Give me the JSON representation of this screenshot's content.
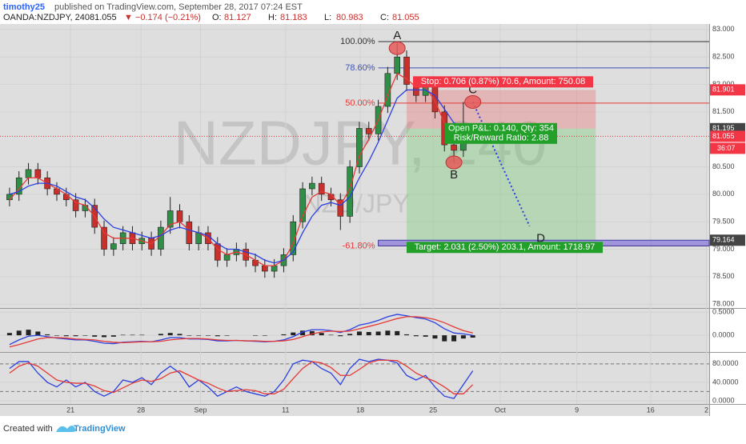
{
  "header": {
    "author": "timothy25",
    "published": "published on TradingView.com, September 28, 2017 07:24 EST",
    "symbol": "OANDA:NZDJPY, 240",
    "last": 81.055,
    "change": "▼ −0.174 (−0.21%)",
    "ohlc": [
      {
        "label": "O:",
        "value": 81.127
      },
      {
        "label": "H:",
        "value": 81.183
      },
      {
        "label": "L:",
        "value": 80.983
      },
      {
        "label": "C:",
        "value": 81.055
      }
    ]
  },
  "chart_data": [
    {
      "type": "candlestick",
      "watermark": "NZDJPY, 240",
      "watermark_sub": "NZD/JPY",
      "xlim": [
        -0.5,
        74
      ],
      "xticks": [
        {
          "value": 6.45,
          "label": "21"
        },
        {
          "value": 13.9,
          "label": "28"
        },
        {
          "value": 20.2,
          "label": "Sep"
        },
        {
          "value": 29.2,
          "label": "11"
        },
        {
          "value": 37.1,
          "label": "18"
        },
        {
          "value": 44.8,
          "label": "25"
        },
        {
          "value": 51.9,
          "label": "Oct"
        },
        {
          "value": 60,
          "label": "9"
        },
        {
          "value": 67.8,
          "label": "16"
        },
        {
          "value": 73.7,
          "label": "2"
        }
      ],
      "ylim": [
        77.93,
        83.1
      ],
      "yticks": [
        {
          "value": 78,
          "label": "78.000"
        },
        {
          "value": 78.5,
          "label": "78.500"
        },
        {
          "value": 79,
          "label": "79.000"
        },
        {
          "value": 79.5,
          "label": "79.500"
        },
        {
          "value": 80,
          "label": "80.000"
        },
        {
          "value": 80.5,
          "label": "80.500"
        },
        {
          "value": 81.5,
          "label": "81.500"
        },
        {
          "value": 82,
          "label": "82.000"
        },
        {
          "value": 82.5,
          "label": "82.500"
        },
        {
          "value": 83,
          "label": "83.000"
        }
      ],
      "up_color": "#2f8f46",
      "down_color": "#c8302c",
      "open": [
        79.9,
        80.0,
        80.3,
        80.45,
        80.3,
        80.1,
        80.0,
        79.9,
        79.7,
        79.8,
        79.4,
        79.0,
        79.1,
        79.3,
        79.1,
        79.2,
        79.0,
        79.4,
        79.7,
        79.5,
        79.1,
        79.3,
        79.1,
        78.8,
        78.9,
        79.0,
        78.8,
        78.7,
        78.6,
        78.7,
        78.9,
        79.5,
        80.1,
        80.2,
        80.0,
        79.9,
        79.6,
        80.5,
        81.2,
        81.1,
        81.6,
        82.2,
        82.5,
        82.0,
        81.8,
        82.0,
        81.5,
        80.9,
        80.8,
        81.127
      ],
      "high": [
        80.12,
        80.42,
        80.57,
        80.57,
        80.42,
        80.22,
        80.12,
        80.02,
        79.92,
        79.92,
        79.52,
        79.22,
        79.42,
        79.42,
        79.32,
        79.32,
        79.52,
        79.95,
        79.82,
        79.62,
        79.42,
        79.42,
        79.22,
        79.02,
        79.12,
        79.12,
        78.92,
        78.82,
        78.82,
        79.02,
        79.62,
        80.22,
        80.32,
        80.32,
        80.12,
        80.02,
        80.62,
        81.32,
        81.32,
        81.72,
        82.32,
        82.78,
        82.62,
        82.12,
        82.12,
        82.12,
        81.62,
        81.02,
        81.68,
        81.183
      ],
      "low": [
        79.78,
        79.88,
        80.18,
        80.18,
        79.98,
        79.88,
        79.78,
        79.58,
        79.58,
        79.28,
        78.88,
        78.88,
        78.98,
        78.98,
        78.98,
        78.88,
        78.88,
        79.28,
        79.38,
        78.98,
        78.98,
        78.98,
        78.68,
        78.68,
        78.78,
        78.68,
        78.58,
        78.48,
        78.48,
        78.58,
        78.78,
        79.38,
        79.98,
        79.88,
        79.78,
        79.35,
        79.48,
        80.38,
        80.98,
        80.98,
        81.48,
        82.08,
        81.88,
        81.68,
        81.68,
        81.38,
        80.78,
        80.58,
        80.68,
        80.983
      ],
      "close": [
        80.0,
        80.3,
        80.45,
        80.3,
        80.1,
        80.0,
        79.9,
        79.7,
        79.8,
        79.4,
        79.0,
        79.1,
        79.3,
        79.1,
        79.2,
        79.0,
        79.4,
        79.7,
        79.5,
        79.1,
        79.3,
        79.1,
        78.8,
        78.9,
        79.0,
        78.8,
        78.7,
        78.6,
        78.7,
        78.9,
        79.5,
        80.1,
        80.2,
        80.0,
        79.9,
        79.6,
        80.5,
        81.2,
        81.1,
        81.6,
        82.2,
        82.5,
        82.0,
        81.8,
        82.0,
        81.5,
        80.9,
        80.8,
        81.13,
        81.055
      ],
      "series": [
        {
          "color": "#e53935",
          "values": [
            79.9,
            80.1,
            80.3,
            80.3,
            80.2,
            80.1,
            80.0,
            79.85,
            79.8,
            79.6,
            79.3,
            79.2,
            79.2,
            79.2,
            79.15,
            79.1,
            79.25,
            79.45,
            79.5,
            79.35,
            79.3,
            79.2,
            79.0,
            78.9,
            78.95,
            78.9,
            78.8,
            78.7,
            78.7,
            78.8,
            79.1,
            79.6,
            79.95,
            80.05,
            80.0,
            79.8,
            80.1,
            80.7,
            81.0,
            81.35,
            81.8,
            82.2,
            82.1,
            81.95,
            81.95,
            81.7,
            81.3,
            81.0,
            81.15,
            81.2
          ]
        },
        {
          "color": "#2a3fe0",
          "values": [
            80.0,
            80.05,
            80.15,
            80.2,
            80.2,
            80.15,
            80.05,
            79.95,
            79.9,
            79.75,
            79.55,
            79.4,
            79.35,
            79.3,
            79.25,
            79.2,
            79.25,
            79.35,
            79.4,
            79.35,
            79.3,
            79.25,
            79.1,
            79.0,
            79.0,
            78.95,
            78.9,
            78.8,
            78.75,
            78.8,
            78.95,
            79.3,
            79.6,
            79.8,
            79.85,
            79.8,
            79.95,
            80.3,
            80.6,
            80.95,
            81.35,
            81.75,
            81.9,
            81.9,
            81.9,
            81.8,
            81.55,
            81.3,
            81.25,
            81.2
          ]
        }
      ],
      "fib_levels": [
        {
          "label": "100.00%",
          "value": 82.78,
          "color": "#333333"
        },
        {
          "label": "78.60%",
          "value": 82.3,
          "color": "#3f51b5"
        },
        {
          "label": "50.00%",
          "value": 81.66,
          "color": "#e53935"
        },
        {
          "label": "-61.80%",
          "value": 79.06,
          "color": "#e53935"
        }
      ],
      "points": [
        {
          "label": "A",
          "x": 41,
          "value": 82.66
        },
        {
          "label": "B",
          "x": 47,
          "value": 80.58
        },
        {
          "label": "C",
          "x": 49,
          "value": 81.68
        },
        {
          "label": "D",
          "x": 55,
          "value": 79.42
        }
      ],
      "position": {
        "x_start": 42,
        "x_end": 62,
        "stop": 81.901,
        "entry": 81.195,
        "target": 79.164,
        "stop_text": "Stop: 0.706 (0.87%) 70.6, Amount: 750.08",
        "pnl_text": "Open P&L: 0.140, Qty: 354",
        "rr_text": "Risk/Reward Ratio: 2.88",
        "target_text": "Target: 2.031 (2.50%) 203.1, Amount: 1718.97"
      },
      "last_price": 81.055,
      "countdown": "36:07"
    },
    {
      "type": "line",
      "ylim": [
        -0.36,
        0.57
      ],
      "yticks": [
        {
          "value": 0,
          "label": "0.0000"
        },
        {
          "value": 0.5,
          "label": "0.5000"
        }
      ],
      "histogram": [
        0.05,
        0.1,
        0.12,
        0.08,
        0.02,
        -0.01,
        -0.02,
        -0.02,
        -0.01,
        -0.03,
        -0.04,
        -0.03,
        0.01,
        0.01,
        0.01,
        0,
        0.03,
        0.05,
        0.03,
        -0.01,
        -0.01,
        -0.01,
        -0.02,
        -0.01,
        0,
        0,
        -0.01,
        -0.01,
        0,
        0.02,
        0.06,
        0.1,
        0.09,
        0.05,
        0.01,
        -0.02,
        0.03,
        0.08,
        0.07,
        0.08,
        0.1,
        0.09,
        0.02,
        -0.02,
        -0.03,
        -0.07,
        -0.13,
        -0.13,
        -0.07,
        -0.05
      ],
      "series": [
        {
          "color": "#2a3fe0",
          "values": [
            -0.2,
            -0.1,
            -0.02,
            0.0,
            -0.03,
            -0.06,
            -0.08,
            -0.1,
            -0.1,
            -0.13,
            -0.17,
            -0.18,
            -0.15,
            -0.14,
            -0.13,
            -0.14,
            -0.1,
            -0.05,
            -0.05,
            -0.08,
            -0.08,
            -0.09,
            -0.12,
            -0.12,
            -0.11,
            -0.12,
            -0.13,
            -0.14,
            -0.13,
            -0.1,
            -0.03,
            0.07,
            0.12,
            0.12,
            0.1,
            0.06,
            0.12,
            0.22,
            0.26,
            0.32,
            0.4,
            0.45,
            0.42,
            0.38,
            0.35,
            0.27,
            0.14,
            0.05,
            0.03,
            0.0
          ]
        },
        {
          "color": "#e53935",
          "values": [
            -0.25,
            -0.2,
            -0.14,
            -0.08,
            -0.05,
            -0.05,
            -0.06,
            -0.08,
            -0.09,
            -0.1,
            -0.13,
            -0.15,
            -0.16,
            -0.15,
            -0.14,
            -0.14,
            -0.13,
            -0.1,
            -0.08,
            -0.07,
            -0.07,
            -0.08,
            -0.1,
            -0.11,
            -0.11,
            -0.12,
            -0.12,
            -0.13,
            -0.13,
            -0.12,
            -0.09,
            -0.03,
            0.03,
            0.07,
            0.09,
            0.08,
            0.09,
            0.14,
            0.19,
            0.24,
            0.3,
            0.36,
            0.4,
            0.4,
            0.38,
            0.34,
            0.27,
            0.18,
            0.1,
            0.05
          ]
        }
      ]
    },
    {
      "type": "line",
      "ylim": [
        -7,
        104
      ],
      "yticks": [
        {
          "value": 0,
          "label": "0.0000"
        },
        {
          "value": 40,
          "label": "40.0000"
        },
        {
          "value": 80,
          "label": "80.0000"
        }
      ],
      "bands": [
        20,
        80
      ],
      "series": [
        {
          "color": "#2a3fe0",
          "values": [
            70,
            85,
            85,
            60,
            40,
            30,
            45,
            30,
            40,
            20,
            10,
            20,
            45,
            40,
            50,
            35,
            60,
            75,
            60,
            30,
            45,
            30,
            10,
            20,
            30,
            20,
            15,
            10,
            20,
            45,
            80,
            88,
            85,
            70,
            60,
            35,
            70,
            90,
            85,
            90,
            88,
            82,
            55,
            45,
            55,
            30,
            10,
            5,
            35,
            65
          ]
        },
        {
          "color": "#e53935",
          "values": [
            60,
            75,
            82,
            75,
            60,
            45,
            40,
            38,
            38,
            32,
            22,
            18,
            28,
            38,
            45,
            42,
            48,
            60,
            65,
            55,
            45,
            38,
            28,
            20,
            22,
            24,
            22,
            15,
            15,
            25,
            48,
            70,
            85,
            82,
            72,
            55,
            55,
            68,
            82,
            88,
            88,
            87,
            75,
            60,
            50,
            42,
            30,
            15,
            15,
            35
          ]
        }
      ]
    }
  ],
  "footer": {
    "created": "Created with",
    "brand": "TradingView"
  }
}
